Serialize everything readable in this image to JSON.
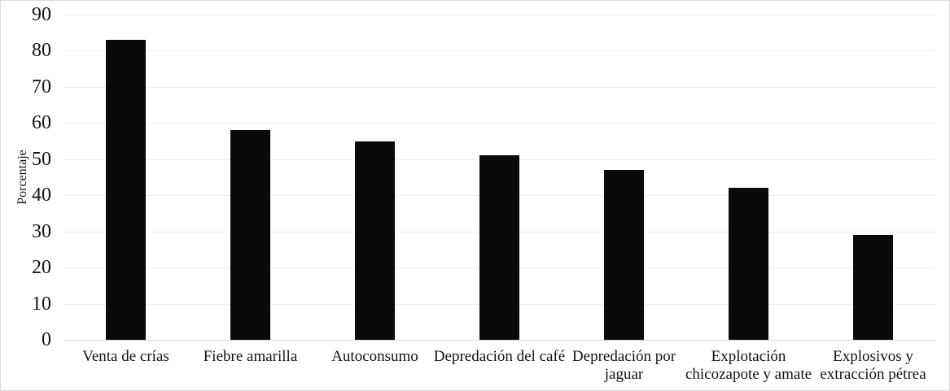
{
  "figure": {
    "background_color": "#ffffff",
    "border_color": "#dcdcdc"
  },
  "chart_data": {
    "type": "bar",
    "title": "",
    "xlabel": "",
    "ylabel": "Porcentaje",
    "ylim": [
      0,
      90
    ],
    "yticks": [
      0,
      10,
      20,
      30,
      40,
      50,
      60,
      70,
      80,
      90
    ],
    "grid": "horizontal",
    "legend_position": "none",
    "categories": [
      "Venta de crías",
      "Fiebre amarilla",
      "Autoconsumo",
      "Depredación del café",
      "Depredación por jaguar",
      "Explotación chicozapote y amate",
      "Explosivos y extracción pétrea"
    ],
    "category_lines": [
      [
        "Venta de crías"
      ],
      [
        "Fiebre amarilla"
      ],
      [
        "Autoconsumo"
      ],
      [
        "Depredación del café"
      ],
      [
        "Depredación por",
        "jaguar"
      ],
      [
        "Explotación",
        "chicozapote y amate"
      ],
      [
        "Explosivos y",
        "extracción pétrea"
      ]
    ],
    "values": [
      83,
      58,
      55,
      51,
      47,
      42,
      29
    ],
    "bar_color": "#0a0a0a",
    "gridline_color": "#efefef",
    "baseline_color": "#d8d8d8",
    "text_color": "#131313"
  }
}
